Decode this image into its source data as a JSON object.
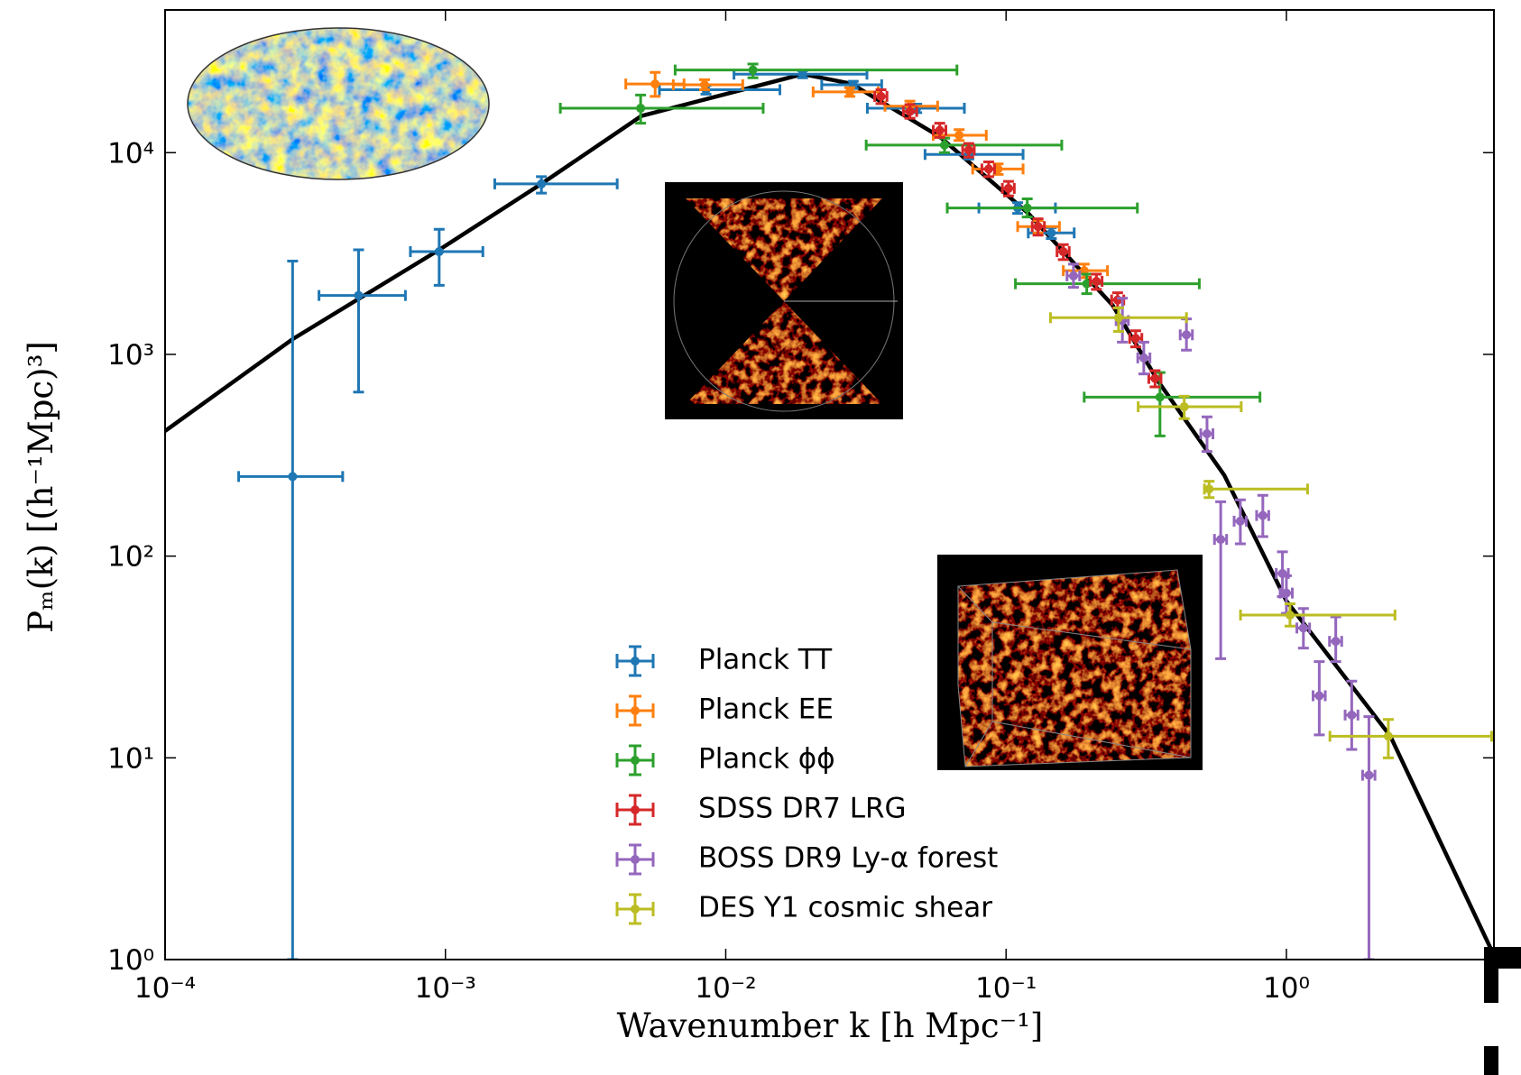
{
  "chart_data": {
    "type": "scatter",
    "xlabel": "Wavenumber k [h Mpc⁻¹]",
    "ylabel": "Pₘ(k) [(h⁻¹Mpc)³]",
    "xscale": "log",
    "yscale": "log",
    "xlim": [
      0.0001,
      5.5
    ],
    "ylim": [
      1,
      51000
    ],
    "xticks": [
      {
        "value": 0.0001,
        "label": "10⁻⁴"
      },
      {
        "value": 0.001,
        "label": "10⁻³"
      },
      {
        "value": 0.01,
        "label": "10⁻²"
      },
      {
        "value": 0.1,
        "label": "10⁻¹"
      },
      {
        "value": 1,
        "label": "10⁰"
      }
    ],
    "yticks": [
      {
        "value": 1,
        "label": "10⁰"
      },
      {
        "value": 10,
        "label": "10¹"
      },
      {
        "value": 100,
        "label": "10²"
      },
      {
        "value": 1000,
        "label": "10³"
      },
      {
        "value": 10000,
        "label": "10⁴"
      }
    ],
    "legend": "lower center",
    "series": [
      {
        "name": "Planck TT",
        "color": "#1f77b4",
        "x": [
          0.000285,
          0.00049,
          0.00095,
          0.0022,
          0.0085,
          0.0188,
          0.0285,
          0.048,
          0.0736,
          0.11,
          0.145
        ],
        "values": [
          248,
          1960,
          3230,
          7000,
          20500,
          24500,
          21700,
          16600,
          9800,
          5320,
          4000
        ],
        "x_low": [
          0.000183,
          0.000354,
          0.00075,
          0.0015,
          0.0058,
          0.0107,
          0.022,
          0.032,
          0.0514,
          0.08,
          0.12
        ],
        "x_high": [
          0.00043,
          0.00072,
          0.00136,
          0.0041,
          0.0156,
          0.0319,
          0.036,
          0.071,
          0.115,
          0.15,
          0.175
        ],
        "y_low": [
          1,
          650,
          2200,
          6300,
          19500,
          23500,
          20800,
          15800,
          9300,
          5000,
          3750
        ],
        "y_high": [
          2900,
          3300,
          4170,
          7600,
          21500,
          25500,
          22600,
          17400,
          10300,
          5650,
          4250
        ]
      },
      {
        "name": "Planck EE",
        "color": "#ff7f0e",
        "x": [
          0.0056,
          0.0084,
          0.0277,
          0.0454,
          0.068,
          0.0937,
          0.13,
          0.19
        ],
        "values": [
          21900,
          21700,
          20000,
          17000,
          12200,
          8300,
          4300,
          2600
        ],
        "x_low": [
          0.0044,
          0.0065,
          0.0205,
          0.037,
          0.055,
          0.076,
          0.11,
          0.16
        ],
        "x_high": [
          0.0071,
          0.0115,
          0.035,
          0.057,
          0.085,
          0.115,
          0.155,
          0.23
        ],
        "y_low": [
          19000,
          20500,
          19000,
          16000,
          11500,
          7800,
          4000,
          2400
        ],
        "y_high": [
          25000,
          23000,
          21000,
          18000,
          13000,
          8800,
          4600,
          2800
        ]
      },
      {
        "name": "Planck ϕϕ",
        "color": "#2ca02c",
        "x": [
          0.0125,
          0.00497,
          0.0603,
          0.119,
          0.194,
          0.354
        ],
        "values": [
          25700,
          16600,
          10900,
          5320,
          2240,
          614
        ],
        "x_low": [
          0.0066,
          0.00257,
          0.0317,
          0.0617,
          0.108,
          0.19
        ],
        "x_high": [
          0.0668,
          0.0136,
          0.158,
          0.294,
          0.489,
          0.805
        ],
        "y_low": [
          23500,
          14000,
          10000,
          4800,
          2000,
          394
        ],
        "y_high": [
          27500,
          19300,
          11800,
          5900,
          2500,
          812
        ]
      },
      {
        "name": "SDSS DR7 LRG",
        "color": "#d62728",
        "x": [
          0.0358,
          0.0454,
          0.058,
          0.0736,
          0.0867,
          0.102,
          0.13,
          0.16,
          0.21,
          0.25,
          0.29,
          0.34
        ],
        "values": [
          19000,
          16000,
          12900,
          10300,
          8300,
          6650,
          4300,
          3230,
          2300,
          1860,
          1200,
          760
        ],
        "x_low": [
          0.034,
          0.043,
          0.055,
          0.07,
          0.082,
          0.097,
          0.124,
          0.152,
          0.2,
          0.238,
          0.276,
          0.323
        ],
        "x_high": [
          0.0376,
          0.048,
          0.061,
          0.077,
          0.091,
          0.107,
          0.137,
          0.168,
          0.22,
          0.263,
          0.305,
          0.357
        ],
        "y_low": [
          17500,
          14800,
          11900,
          9500,
          7600,
          6100,
          3900,
          2950,
          2100,
          1700,
          1090,
          690
        ],
        "y_high": [
          20500,
          17300,
          14000,
          11100,
          9000,
          7200,
          4700,
          3500,
          2500,
          2020,
          1310,
          830
        ]
      },
      {
        "name": "BOSS DR9 Ly-α forest",
        "color": "#9467bd",
        "x": [
          0.174,
          0.26,
          0.44,
          0.31,
          0.521,
          0.583,
          0.685,
          0.824,
          0.968,
          1.0,
          1.15,
          1.31,
          1.5,
          1.71,
          1.97
        ],
        "values": [
          2450,
          1470,
          1250,
          960,
          404,
          121,
          149,
          159,
          82,
          65.6,
          44,
          20.3,
          37.8,
          16.3,
          8.2
        ],
        "x_low": [
          0.165,
          0.247,
          0.418,
          0.295,
          0.495,
          0.554,
          0.651,
          0.783,
          0.92,
          0.95,
          1.09,
          1.245,
          1.425,
          1.62,
          1.87
        ],
        "x_high": [
          0.183,
          0.273,
          0.462,
          0.326,
          0.547,
          0.612,
          0.719,
          0.865,
          1.016,
          1.05,
          1.21,
          1.376,
          1.575,
          1.8,
          2.07
        ],
        "y_low": [
          2150,
          1150,
          1050,
          800,
          330,
          31,
          115,
          125,
          63,
          52,
          35,
          13,
          30,
          11,
          1
        ],
        "y_high": [
          2800,
          1900,
          1500,
          1150,
          490,
          186,
          190,
          200,
          105,
          80,
          55,
          30,
          50,
          24,
          16
        ]
      },
      {
        "name": "DES Y1 cosmic shear",
        "color": "#bcbd22",
        "x": [
          0.252,
          0.432,
          0.53,
          1.03,
          2.31
        ],
        "values": [
          1520,
          550,
          215,
          51,
          12.8
        ],
        "x_low": [
          0.144,
          0.296,
          0.51,
          0.686,
          1.43
        ],
        "x_high": [
          0.44,
          0.69,
          1.19,
          2.44,
          5.4
        ],
        "y_low": [
          1300,
          480,
          195,
          45,
          10
        ],
        "y_high": [
          1700,
          620,
          235,
          58,
          15.5
        ]
      }
    ],
    "model": {
      "color": "#000000",
      "x": [
        0.0001,
        0.000285,
        0.00095,
        0.0022,
        0.005,
        0.0188,
        0.028,
        0.058,
        0.12,
        0.24,
        0.35,
        0.6,
        1.0,
        2.35,
        5.5
      ],
      "values": [
        417,
        1190,
        3300,
        7000,
        15200,
        24500,
        22000,
        12000,
        5000,
        1750,
        730,
        252,
        60,
        12.8,
        1.05
      ]
    }
  }
}
